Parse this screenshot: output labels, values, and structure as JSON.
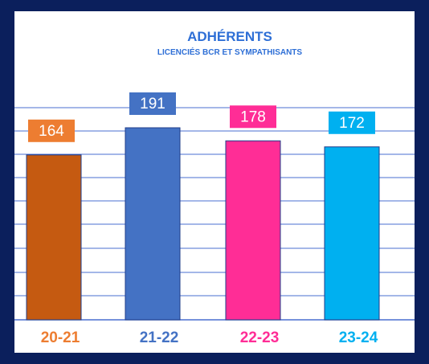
{
  "chart_data": {
    "type": "bar",
    "title": "ADHÉRENTS",
    "subtitle": "LICENCIÉS BCR ET SYMPATHISANTS",
    "categories": [
      "20-21",
      "21-22",
      "22-23",
      "23-24"
    ],
    "values": [
      164,
      191,
      178,
      172
    ],
    "value_labels": [
      "164",
      "191",
      "178",
      "172"
    ],
    "colors": [
      "#c55a11",
      "#4472c4",
      "#ff2d96",
      "#00b0f0"
    ],
    "label_colors": [
      "#ed7d31",
      "#4472c4",
      "#ff2d96",
      "#00b0f0"
    ],
    "grid": true,
    "gridline_color": "#4a6fd0",
    "title_color": "#2e6fd6",
    "ylim": [
      0,
      210
    ]
  }
}
